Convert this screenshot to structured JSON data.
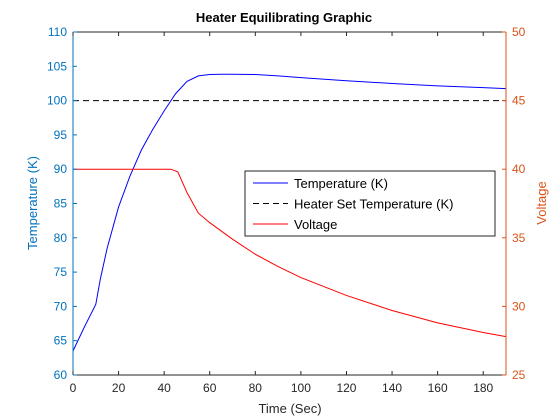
{
  "chart_data": {
    "type": "line",
    "title": "Heater Equilibrating Graphic",
    "xlabel": "Time (Sec)",
    "ylabel_left": "Temperature (K)",
    "ylabel_right": "Voltage",
    "xlim": [
      0,
      190
    ],
    "ylim_left": [
      60,
      110
    ],
    "ylim_right": [
      25,
      50
    ],
    "x_ticks": [
      "0",
      "20",
      "40",
      "60",
      "80",
      "100",
      "120",
      "140",
      "160",
      "180"
    ],
    "x_tick_values": [
      0,
      20,
      40,
      60,
      80,
      100,
      120,
      140,
      160,
      180
    ],
    "y_left_ticks": [
      "60",
      "65",
      "70",
      "75",
      "80",
      "85",
      "90",
      "95",
      "100",
      "105",
      "110"
    ],
    "y_left_tick_values": [
      60,
      65,
      70,
      75,
      80,
      85,
      90,
      95,
      100,
      105,
      110
    ],
    "y_right_ticks": [
      "25",
      "30",
      "35",
      "40",
      "45",
      "50"
    ],
    "y_right_tick_values": [
      25,
      30,
      35,
      40,
      45,
      50
    ],
    "grid": false,
    "legend_position": "center-right",
    "colors": {
      "left_axis": "#0072bd",
      "right_axis": "#d95319",
      "temperature": "#0000ff",
      "setpoint": "#000000",
      "voltage": "#ff0000"
    },
    "series": [
      {
        "name": "Temperature (K)",
        "axis": "left",
        "style": "solid",
        "x": [
          0,
          5,
          10,
          12,
          15,
          20,
          25,
          30,
          35,
          40,
          45,
          50,
          55,
          60,
          65,
          70,
          80,
          90,
          100,
          120,
          140,
          160,
          180,
          190
        ],
        "y": [
          63.5,
          67,
          70.3,
          74,
          78.5,
          84.5,
          89,
          92.8,
          95.8,
          98.5,
          101,
          102.8,
          103.6,
          103.8,
          103.85,
          103.85,
          103.8,
          103.6,
          103.35,
          102.9,
          102.5,
          102.15,
          101.9,
          101.75
        ]
      },
      {
        "name": "Heater Set Temperature (K)",
        "axis": "left",
        "style": "dashed",
        "x": [
          0,
          190
        ],
        "y": [
          100,
          100
        ]
      },
      {
        "name": "Voltage",
        "axis": "right",
        "style": "solid",
        "x": [
          0,
          10,
          20,
          30,
          40,
          43,
          46,
          50,
          55,
          60,
          70,
          80,
          90,
          100,
          120,
          140,
          160,
          180,
          190
        ],
        "y": [
          40,
          40,
          40,
          40,
          40,
          40,
          39.8,
          38.3,
          36.8,
          36.1,
          34.9,
          33.8,
          32.9,
          32.1,
          30.8,
          29.7,
          28.8,
          28.1,
          27.8
        ]
      }
    ]
  }
}
